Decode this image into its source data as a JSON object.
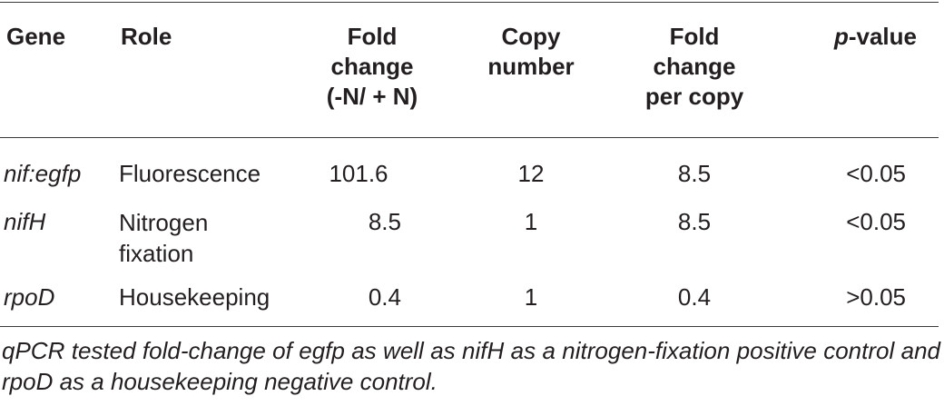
{
  "table": {
    "headers": {
      "gene": "Gene",
      "role": "Role",
      "fold_change": [
        "Fold",
        "change",
        "(-N/ + N)"
      ],
      "copy_number": [
        "Copy",
        "number"
      ],
      "fold_per_copy": [
        "Fold",
        "change",
        "per copy"
      ],
      "p_value": {
        "italic": "p",
        "rest": "-value"
      }
    },
    "rows": [
      {
        "gene": "nif:egfp",
        "role": [
          "Fluorescence"
        ],
        "fold_change": "101.6",
        "copy_number": "12",
        "fold_per_copy": "8.5",
        "p_value": "<0.05"
      },
      {
        "gene": "nifH",
        "role": [
          "Nitrogen",
          "fixation"
        ],
        "fold_change": "8.5",
        "copy_number": "1",
        "fold_per_copy": "8.5",
        "p_value": "<0.05"
      },
      {
        "gene": "rpoD",
        "role": [
          "Housekeeping"
        ],
        "fold_change": "0.4",
        "copy_number": "1",
        "fold_per_copy": "0.4",
        "p_value": ">0.05"
      }
    ]
  },
  "caption": "qPCR tested fold-change of egfp as well as nifH as a nitrogen-fixation positive control and rpoD as a housekeeping negative control."
}
